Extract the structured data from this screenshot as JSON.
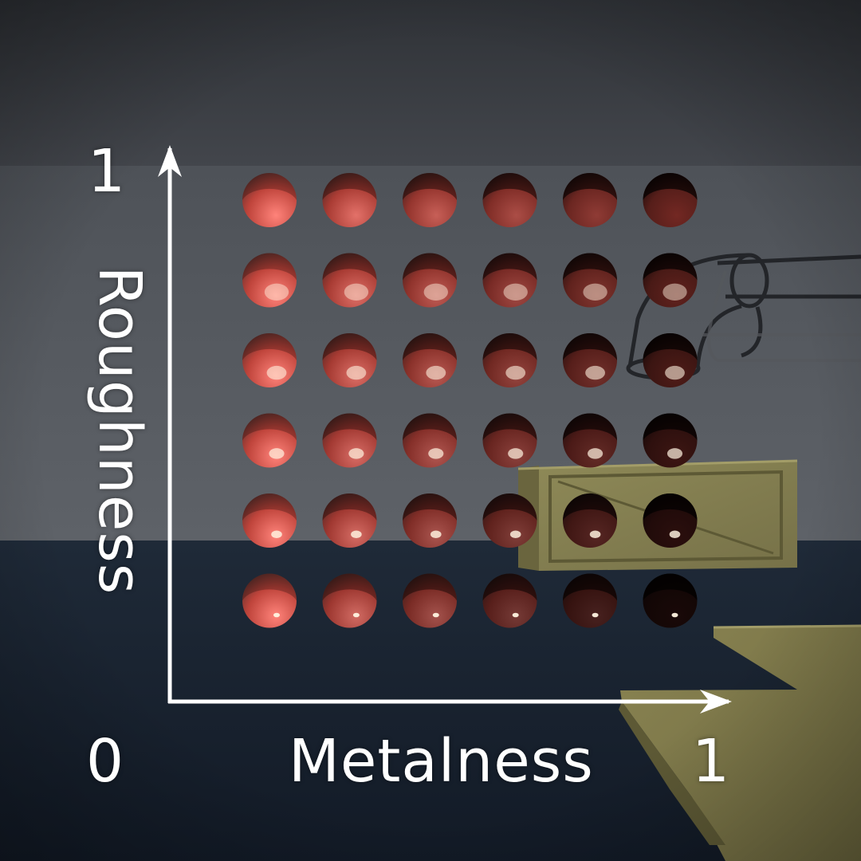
{
  "axes": {
    "x_title": "Metalness",
    "y_title": "Roughness",
    "origin_label": "0",
    "x_max_label": "1",
    "y_max_label": "1"
  },
  "sphere_grid": {
    "columns": 6,
    "rows": 6,
    "base_color": "#ff5a4e",
    "metalness_values": [
      0,
      0.2,
      0.4,
      0.6,
      0.8,
      1
    ],
    "roughness_values": [
      1,
      0.8,
      0.6,
      0.4,
      0.2,
      0
    ]
  },
  "colors": {
    "wall": "#5a5f66",
    "ceiling": "#3a3e44",
    "floor": "#1a2535",
    "crate": "#8a8452",
    "axis": "#ffffff"
  }
}
